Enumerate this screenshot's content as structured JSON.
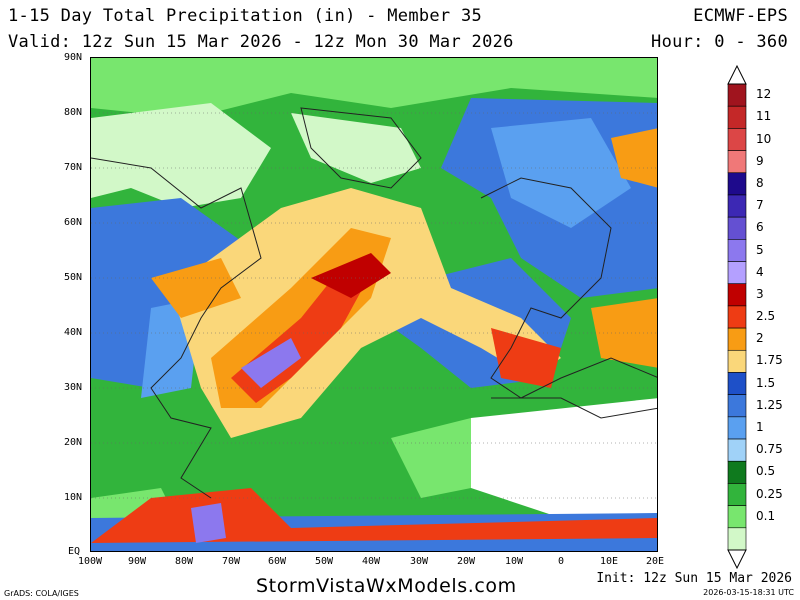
{
  "header": {
    "title_line1": "1-15 Day Total Precipitation (in) - Member 35",
    "title_line2": "Valid: 12z Sun 15 Mar 2026 - 12z Mon 30 Mar 2026",
    "model": "ECMWF-EPS",
    "hours": "Hour: 0 - 360"
  },
  "map": {
    "lat_labels": [
      "90N",
      "80N",
      "70N",
      "60N",
      "50N",
      "40N",
      "30N",
      "20N",
      "10N",
      "EQ"
    ],
    "lon_labels": [
      "100W",
      "90W",
      "80W",
      "70W",
      "60W",
      "50W",
      "40W",
      "30W",
      "20W",
      "10W",
      "0",
      "10E",
      "20E"
    ]
  },
  "colorbar": {
    "levels": [
      {
        "label": "12",
        "color": "#a0141e"
      },
      {
        "label": "11",
        "color": "#c42828"
      },
      {
        "label": "10",
        "color": "#dc4646"
      },
      {
        "label": "9",
        "color": "#f07878"
      },
      {
        "label": "8",
        "color": "#1e0a8c"
      },
      {
        "label": "7",
        "color": "#3c28b4"
      },
      {
        "label": "6",
        "color": "#6450d2"
      },
      {
        "label": "5",
        "color": "#8c78ee"
      },
      {
        "label": "4",
        "color": "#b4a0ff"
      },
      {
        "label": "3",
        "color": "#c00000"
      },
      {
        "label": "2.5",
        "color": "#ee3c14"
      },
      {
        "label": "2",
        "color": "#f89c14"
      },
      {
        "label": "1.75",
        "color": "#fad77a"
      },
      {
        "label": "1.5",
        "color": "#1e50c8"
      },
      {
        "label": "1.25",
        "color": "#3c78dc"
      },
      {
        "label": "1",
        "color": "#5aa0f0"
      },
      {
        "label": "0.75",
        "color": "#a0d2f8"
      },
      {
        "label": "0.5",
        "color": "#0f7a1e"
      },
      {
        "label": "0.25",
        "color": "#32b43c"
      },
      {
        "label": "0.1",
        "color": "#78e66e"
      }
    ],
    "lightest_color": "#d2f8c8"
  },
  "footer": {
    "site": "StormVistaWxModels.com",
    "grads": "GrADS: COLA/IGES",
    "init": "Init: 12z Sun 15 Mar 2026",
    "stamp": "2026-03-15-18:31 UTC"
  }
}
